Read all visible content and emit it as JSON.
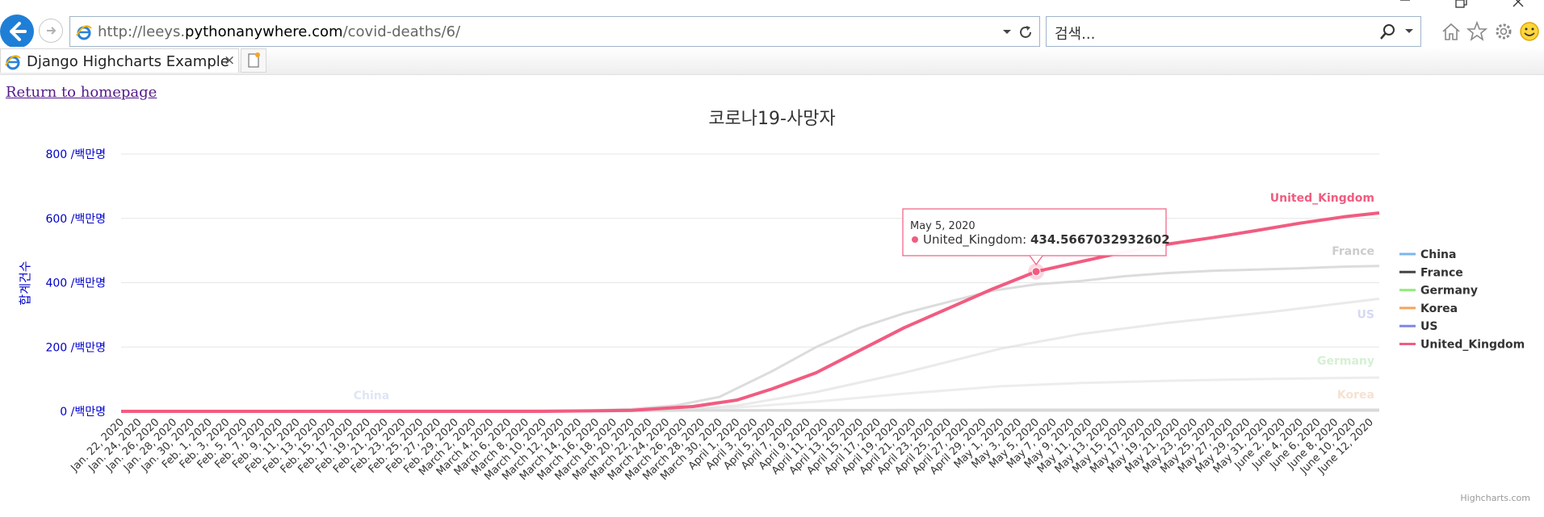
{
  "browser": {
    "url_host": "http://leeys.",
    "url_domain": "pythonanywhere.com",
    "url_path": "/covid-deaths/6/",
    "search_placeholder": "검색...",
    "tab_title": "Django Highcharts Example",
    "tab_close": "×"
  },
  "page": {
    "home_link": "Return to homepage"
  },
  "tooltip": {
    "date": "May 5, 2020",
    "series": "United_Kingdom",
    "value": "434.5667032932602"
  },
  "credits": "Highcharts.com",
  "colors": {
    "China": "#7cb5ec",
    "France": "#434348",
    "Germany": "#90ed7d",
    "Korea": "#f7a35c",
    "US": "#8085e9",
    "United_Kingdom": "#f15c80"
  },
  "chart_data": {
    "type": "line",
    "title": "코로나19-사망자",
    "ylabel": "합계건수",
    "y_tick_suffix": " /백만명",
    "ylim": [
      0,
      800
    ],
    "y_ticks": [
      0,
      200,
      400,
      600,
      800
    ],
    "x_start": "2020-01-22",
    "x_end": "2020-06-13",
    "x_tick_labels": [
      "Jan. 22, 2020",
      "Jan. 24, 2020",
      "Jan. 26, 2020",
      "Jan. 28, 2020",
      "Jan. 30, 2020",
      "Feb. 1, 2020",
      "Feb. 3, 2020",
      "Feb. 5, 2020",
      "Feb. 7, 2020",
      "Feb. 9, 2020",
      "Feb. 11, 2020",
      "Feb. 13, 2020",
      "Feb. 15, 2020",
      "Feb. 17, 2020",
      "Feb. 19, 2020",
      "Feb. 21, 2020",
      "Feb. 23, 2020",
      "Feb. 25, 2020",
      "Feb. 27, 2020",
      "Feb. 29, 2020",
      "March 2, 2020",
      "March 4, 2020",
      "March 6, 2020",
      "March 8, 2020",
      "March 10, 2020",
      "March 12, 2020",
      "March 14, 2020",
      "March 16, 2020",
      "March 18, 2020",
      "March 20, 2020",
      "March 22, 2020",
      "March 24, 2020",
      "March 26, 2020",
      "March 28, 2020",
      "March 30, 2020",
      "April 1, 2020",
      "April 3, 2020",
      "April 5, 2020",
      "April 7, 2020",
      "April 9, 2020",
      "April 11, 2020",
      "April 13, 2020",
      "April 15, 2020",
      "April 17, 2020",
      "April 19, 2020",
      "April 21, 2020",
      "April 23, 2020",
      "April 25, 2020",
      "April 27, 2020",
      "April 29, 2020",
      "May 1, 2020",
      "May 3, 2020",
      "May 5, 2020",
      "May 7, 2020",
      "May 9, 2020",
      "May 11, 2020",
      "May 13, 2020",
      "May 15, 2020",
      "May 17, 2020",
      "May 19, 2020",
      "May 21, 2020",
      "May 23, 2020",
      "May 25, 2020",
      "May 27, 2020",
      "May 29, 2020",
      "May 31, 2020",
      "June 2, 2020",
      "June 4, 2020",
      "June 6, 2020",
      "June 8, 2020",
      "June 10, 2020",
      "June 12, 2020"
    ],
    "legend_position": "right",
    "grid": true,
    "highlighted": {
      "series": "United_Kingdom",
      "x": "2020-05-05",
      "y": 434.5667032932602
    },
    "series": [
      {
        "name": "China",
        "points": [
          [
            "2020-01-22",
            0
          ],
          [
            "2020-02-20",
            2
          ],
          [
            "2020-04-17",
            3
          ],
          [
            "2020-06-13",
            3
          ]
        ]
      },
      {
        "name": "France",
        "points": [
          [
            "2020-01-22",
            0
          ],
          [
            "2020-03-08",
            1
          ],
          [
            "2020-03-15",
            2
          ],
          [
            "2020-03-20",
            7
          ],
          [
            "2020-03-25",
            18
          ],
          [
            "2020-03-30",
            45
          ],
          [
            "2020-04-05",
            125
          ],
          [
            "2020-04-10",
            200
          ],
          [
            "2020-04-15",
            260
          ],
          [
            "2020-04-20",
            305
          ],
          [
            "2020-04-25",
            340
          ],
          [
            "2020-04-30",
            375
          ],
          [
            "2020-05-05",
            395
          ],
          [
            "2020-05-10",
            405
          ],
          [
            "2020-05-15",
            420
          ],
          [
            "2020-05-20",
            430
          ],
          [
            "2020-05-25",
            437
          ],
          [
            "2020-05-30",
            441
          ],
          [
            "2020-06-04",
            445
          ],
          [
            "2020-06-09",
            450
          ],
          [
            "2020-06-13",
            452
          ]
        ]
      },
      {
        "name": "Germany",
        "points": [
          [
            "2020-01-22",
            0
          ],
          [
            "2020-03-15",
            0
          ],
          [
            "2020-03-25",
            2
          ],
          [
            "2020-04-01",
            12
          ],
          [
            "2020-04-10",
            30
          ],
          [
            "2020-04-20",
            55
          ],
          [
            "2020-05-01",
            78
          ],
          [
            "2020-05-10",
            88
          ],
          [
            "2020-05-20",
            95
          ],
          [
            "2020-06-01",
            101
          ],
          [
            "2020-06-13",
            105
          ]
        ]
      },
      {
        "name": "Korea",
        "points": [
          [
            "2020-01-22",
            0
          ],
          [
            "2020-03-01",
            1
          ],
          [
            "2020-04-01",
            3
          ],
          [
            "2020-05-01",
            5
          ],
          [
            "2020-06-13",
            5
          ]
        ]
      },
      {
        "name": "US",
        "points": [
          [
            "2020-01-22",
            0
          ],
          [
            "2020-03-15",
            0
          ],
          [
            "2020-03-25",
            4
          ],
          [
            "2020-04-01",
            18
          ],
          [
            "2020-04-10",
            60
          ],
          [
            "2020-04-20",
            120
          ],
          [
            "2020-05-01",
            195
          ],
          [
            "2020-05-10",
            240
          ],
          [
            "2020-05-20",
            275
          ],
          [
            "2020-06-01",
            310
          ],
          [
            "2020-06-13",
            350
          ]
        ]
      },
      {
        "name": "United_Kingdom",
        "points": [
          [
            "2020-01-22",
            0
          ],
          [
            "2020-03-10",
            0
          ],
          [
            "2020-03-20",
            3
          ],
          [
            "2020-03-27",
            15
          ],
          [
            "2020-04-01",
            35
          ],
          [
            "2020-04-05",
            70
          ],
          [
            "2020-04-10",
            120
          ],
          [
            "2020-04-15",
            190
          ],
          [
            "2020-04-20",
            260
          ],
          [
            "2020-04-25",
            320
          ],
          [
            "2020-04-30",
            380
          ],
          [
            "2020-05-05",
            434.5667032932602
          ],
          [
            "2020-05-10",
            465
          ],
          [
            "2020-05-15",
            495
          ],
          [
            "2020-05-20",
            520
          ],
          [
            "2020-05-25",
            540
          ],
          [
            "2020-05-30",
            562
          ],
          [
            "2020-06-04",
            585
          ],
          [
            "2020-06-09",
            605
          ],
          [
            "2020-06-13",
            617
          ]
        ]
      }
    ]
  }
}
